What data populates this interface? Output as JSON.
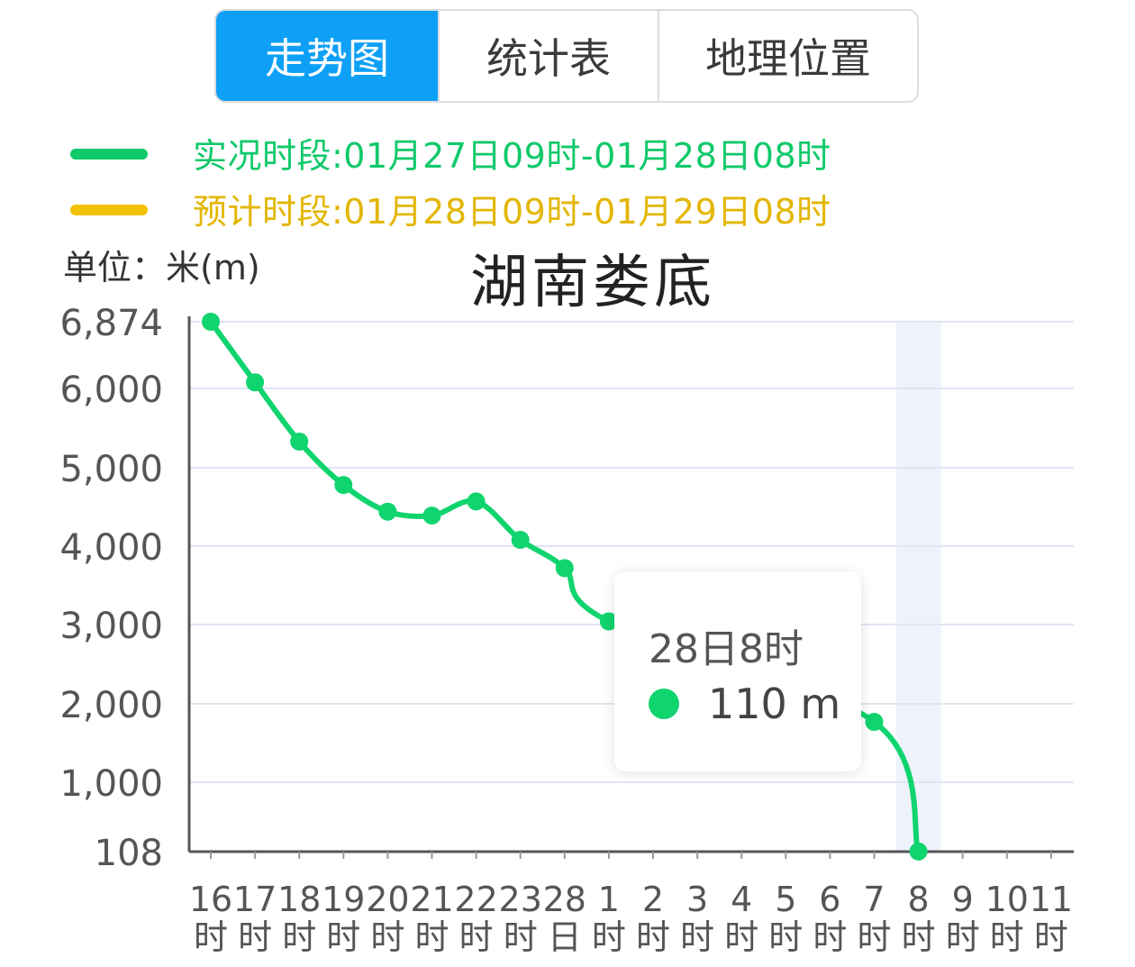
{
  "tabs": [
    {
      "label": "走势图",
      "active": true
    },
    {
      "label": "统计表",
      "active": false
    },
    {
      "label": "地理位置",
      "active": false
    }
  ],
  "legend": {
    "observed": {
      "text": "实况时段:01月27日09时-01月28日08时",
      "color": "#10c96a"
    },
    "forecast": {
      "text": "预计时段:01月28日09时-01月29日08时",
      "color": "#f2c200"
    }
  },
  "unit_label": "单位：米(m)",
  "colors": {
    "accent": "#0ea0f6",
    "line": "#10d46e",
    "grid": "#dfe5f2",
    "axis": "#555555",
    "highlight": "#eef2fb"
  },
  "chart_data": {
    "type": "line",
    "title": "湖南娄底",
    "y_ticks": [
      "6,874",
      "6,000",
      "5,000",
      "4,000",
      "3,000",
      "2,000",
      "1,000",
      "108"
    ],
    "y_tick_values": [
      6874,
      6000,
      5000,
      4000,
      3000,
      2000,
      1000,
      108
    ],
    "ylim": [
      108,
      6874
    ],
    "categories": [
      [
        "16",
        "时"
      ],
      [
        "17",
        "时"
      ],
      [
        "18",
        "时"
      ],
      [
        "19",
        "时"
      ],
      [
        "20",
        "时"
      ],
      [
        "21",
        "时"
      ],
      [
        "22",
        "时"
      ],
      [
        "23",
        "时"
      ],
      [
        "28",
        "日"
      ],
      [
        "1",
        "时"
      ],
      [
        "2",
        "时"
      ],
      [
        "3",
        "时"
      ],
      [
        "4",
        "时"
      ],
      [
        "5",
        "时"
      ],
      [
        "6",
        "时"
      ],
      [
        "7",
        "时"
      ],
      [
        "8",
        "时"
      ],
      [
        "9",
        "时"
      ],
      [
        "10",
        "时"
      ],
      [
        "11",
        "时"
      ]
    ],
    "series": [
      {
        "values": [
          6874,
          6080,
          5330,
          4780,
          4440,
          4390,
          4570,
          4080,
          3720,
          3040,
          null,
          null,
          null,
          null,
          null,
          1770,
          110,
          null,
          null,
          null
        ],
        "hidden_index_range": [
          10,
          14
        ]
      }
    ],
    "highlight_index": 16,
    "grid": true
  },
  "tooltip": {
    "title": "28日8时",
    "value": "110 m"
  }
}
